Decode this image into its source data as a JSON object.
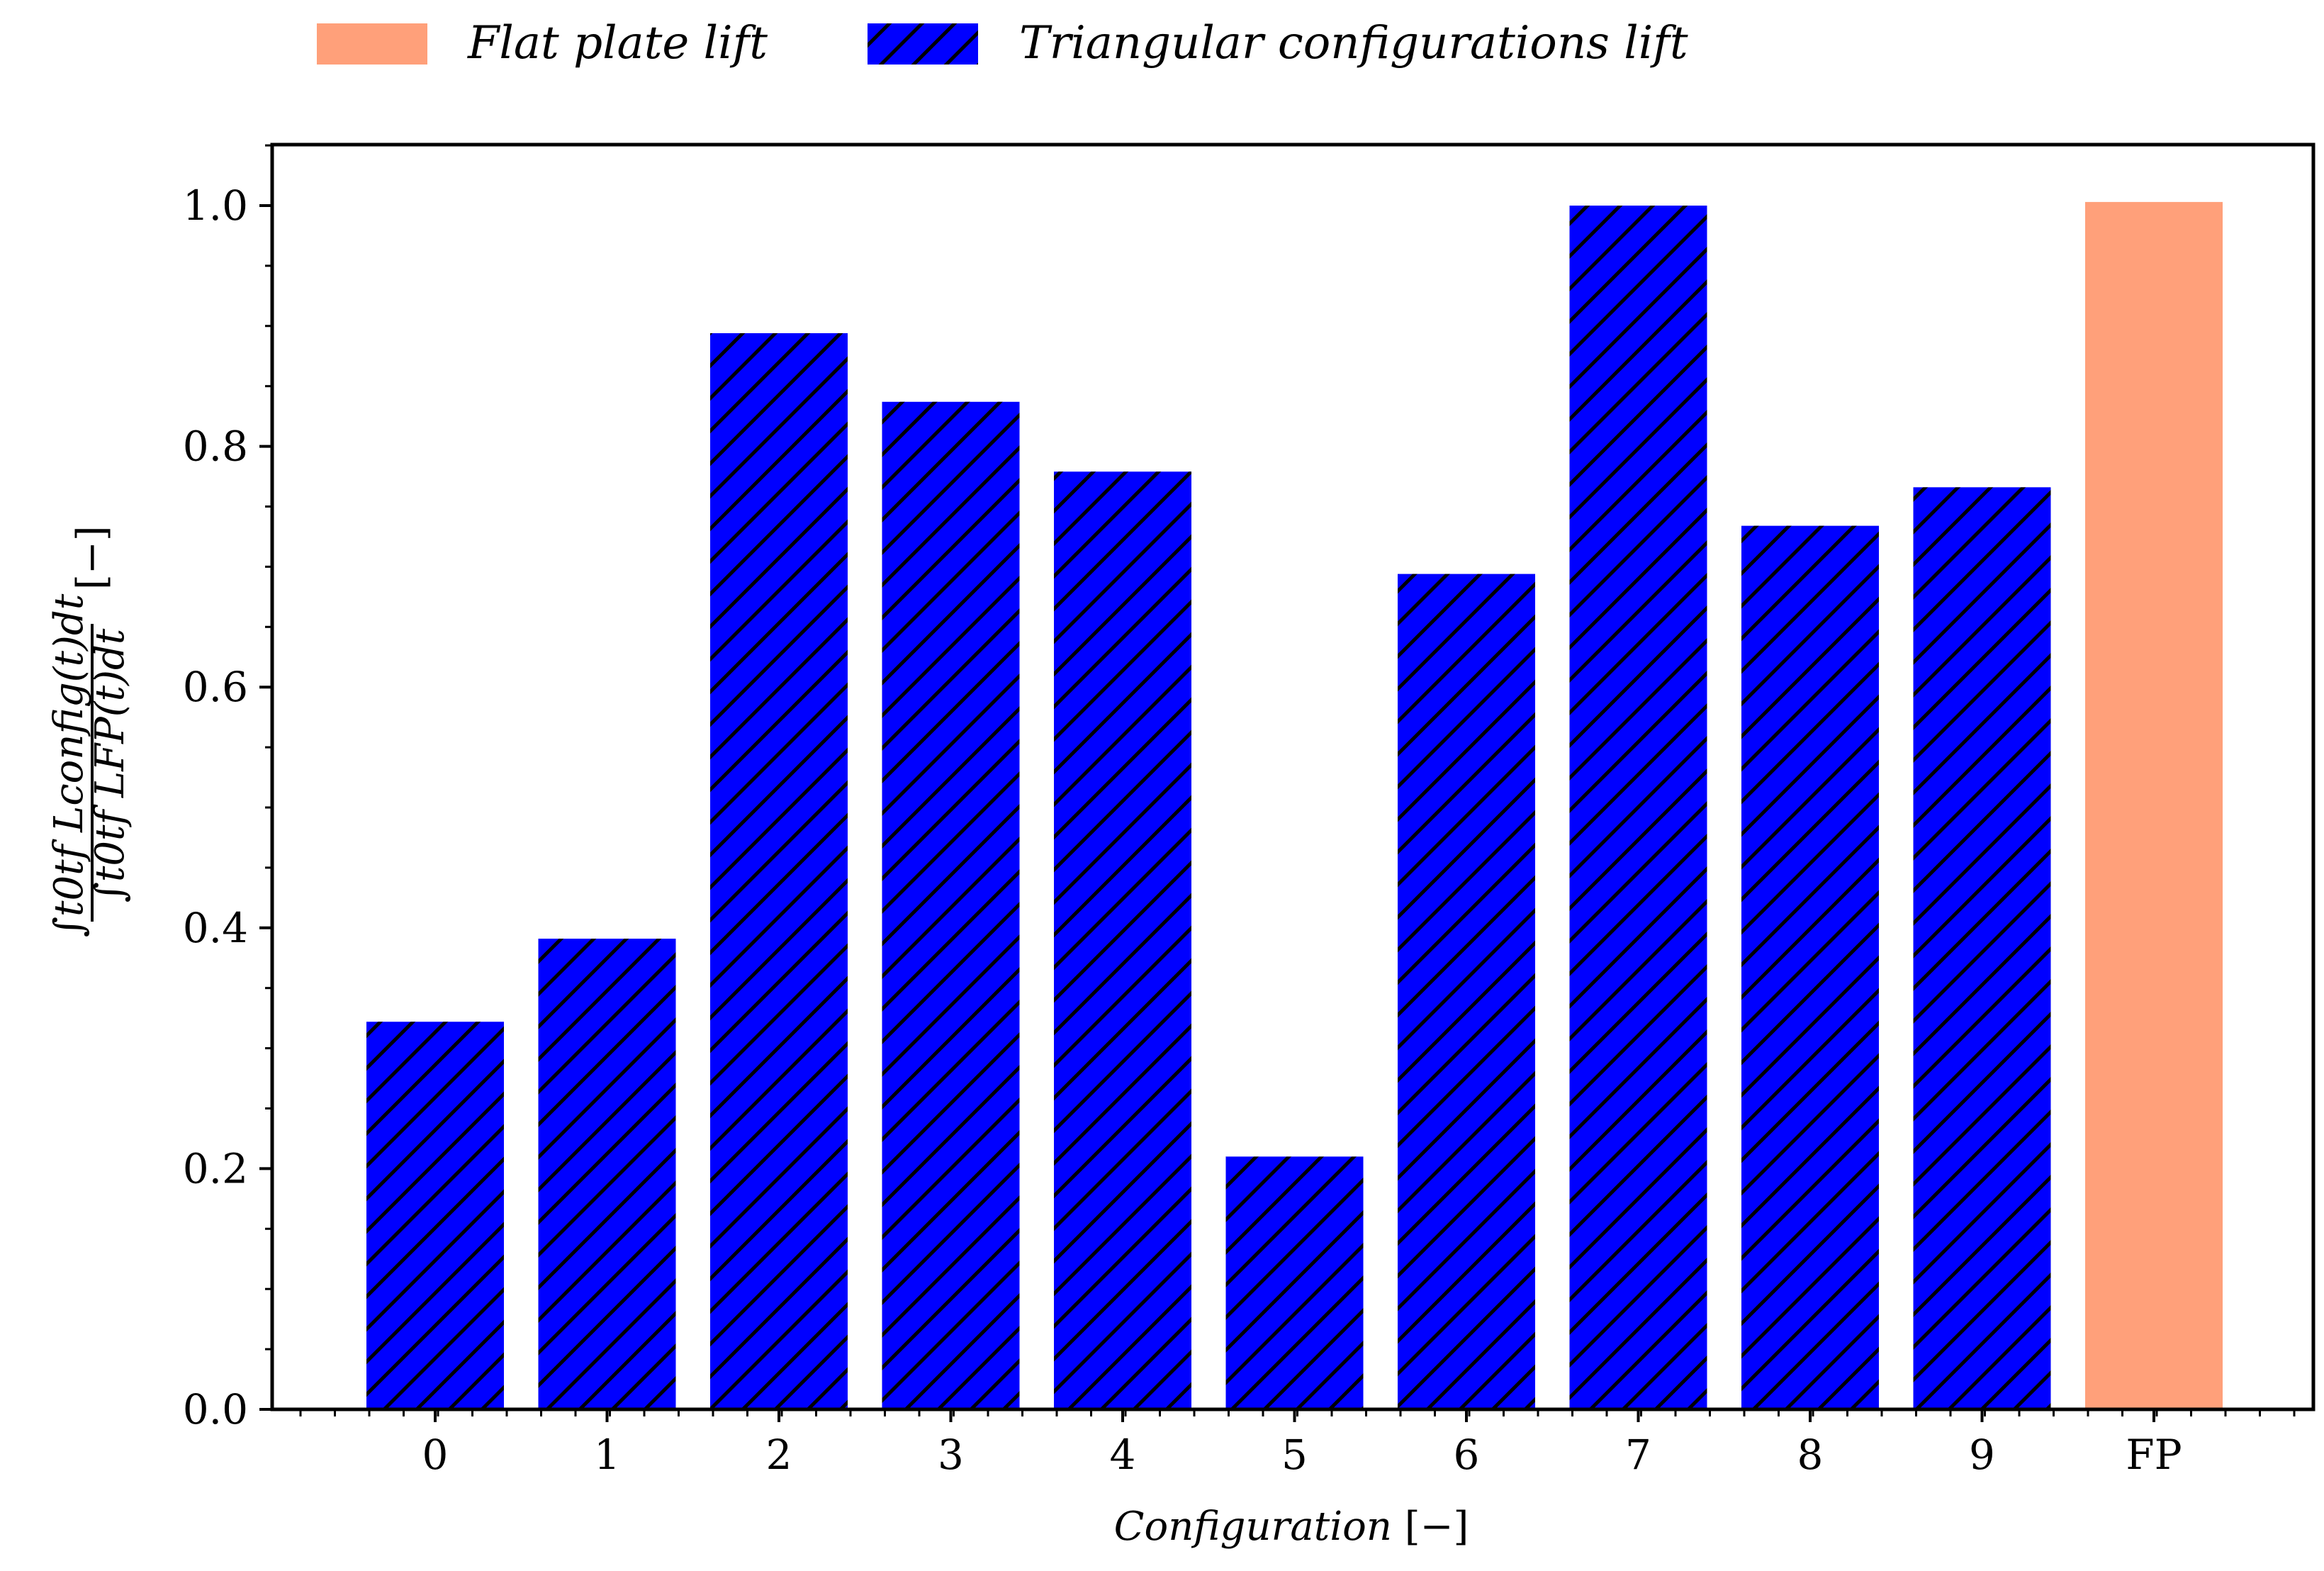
{
  "chart_data": {
    "type": "bar",
    "categories": [
      "0",
      "1",
      "2",
      "3",
      "4",
      "5",
      "6",
      "7",
      "8",
      "9",
      "FP"
    ],
    "series": [
      {
        "name": "Triangular configurations lift",
        "color": "#0000ff",
        "pattern": "hatch-diagonal",
        "values": [
          0.322,
          0.391,
          0.894,
          0.837,
          0.779,
          0.21,
          0.694,
          1.0,
          0.734,
          0.766,
          null
        ]
      },
      {
        "name": "Flat plate lift",
        "color": "#ffa07a",
        "values": [
          null,
          null,
          null,
          null,
          null,
          null,
          null,
          null,
          null,
          null,
          1.003
        ]
      }
    ],
    "xlabel": {
      "main": "Configuration",
      "unit": "[−]"
    },
    "ylabel": {
      "numerator": "∫t0tf Lconfig(t)dt",
      "denominator": "∫t0tf LFP(t)dt",
      "unit": "[−]"
    },
    "ylim": [
      0,
      1.05
    ],
    "yticks": [
      "0.0",
      "0.2",
      "0.4",
      "0.6",
      "0.8",
      "1.0"
    ],
    "grid": false,
    "legend": {
      "placement": "top-center-outside",
      "entries": [
        "Flat plate lift",
        "Triangular configurations lift"
      ]
    }
  }
}
